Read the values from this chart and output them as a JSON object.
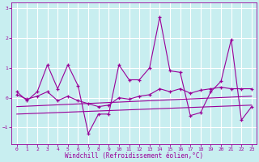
{
  "xlabel": "Windchill (Refroidissement éolien,°C)",
  "bg_color": "#c8eef0",
  "line_color": "#990099",
  "grid_color": "#ffffff",
  "xlim": [
    -0.5,
    23.5
  ],
  "ylim": [
    -1.55,
    3.2
  ],
  "yticks": [
    -1,
    0,
    1,
    2,
    3
  ],
  "xticks": [
    0,
    1,
    2,
    3,
    4,
    5,
    6,
    7,
    8,
    9,
    10,
    11,
    12,
    13,
    14,
    15,
    16,
    17,
    18,
    19,
    20,
    21,
    22,
    23
  ],
  "series1_x": [
    0,
    1,
    2,
    3,
    4,
    5,
    6,
    7,
    8,
    9,
    10,
    11,
    12,
    13,
    14,
    15,
    16,
    17,
    18,
    19,
    20,
    21,
    22,
    23
  ],
  "series1_y": [
    0.2,
    -0.1,
    0.2,
    1.1,
    0.3,
    1.1,
    0.4,
    -1.2,
    -0.55,
    -0.55,
    1.1,
    0.6,
    0.6,
    1.0,
    2.7,
    0.9,
    0.85,
    -0.6,
    -0.5,
    0.2,
    0.55,
    1.95,
    -0.75,
    -0.3
  ],
  "series2_x": [
    0,
    1,
    2,
    3,
    4,
    5,
    6,
    7,
    8,
    9,
    10,
    11,
    12,
    13,
    14,
    15,
    16,
    17,
    18,
    19,
    20,
    21,
    22,
    23
  ],
  "series2_y": [
    0.1,
    -0.05,
    0.05,
    0.2,
    -0.1,
    0.05,
    -0.1,
    -0.2,
    -0.3,
    -0.25,
    0.0,
    -0.05,
    0.05,
    0.1,
    0.3,
    0.2,
    0.3,
    0.15,
    0.25,
    0.3,
    0.35,
    0.3,
    0.3,
    0.3
  ],
  "series3_x": [
    0,
    23
  ],
  "series3_y": [
    -0.55,
    -0.25
  ],
  "series4_x": [
    0,
    23
  ],
  "series4_y": [
    -0.3,
    0.05
  ],
  "xlabel_fontsize": 5.5,
  "tick_fontsize": 4.5
}
